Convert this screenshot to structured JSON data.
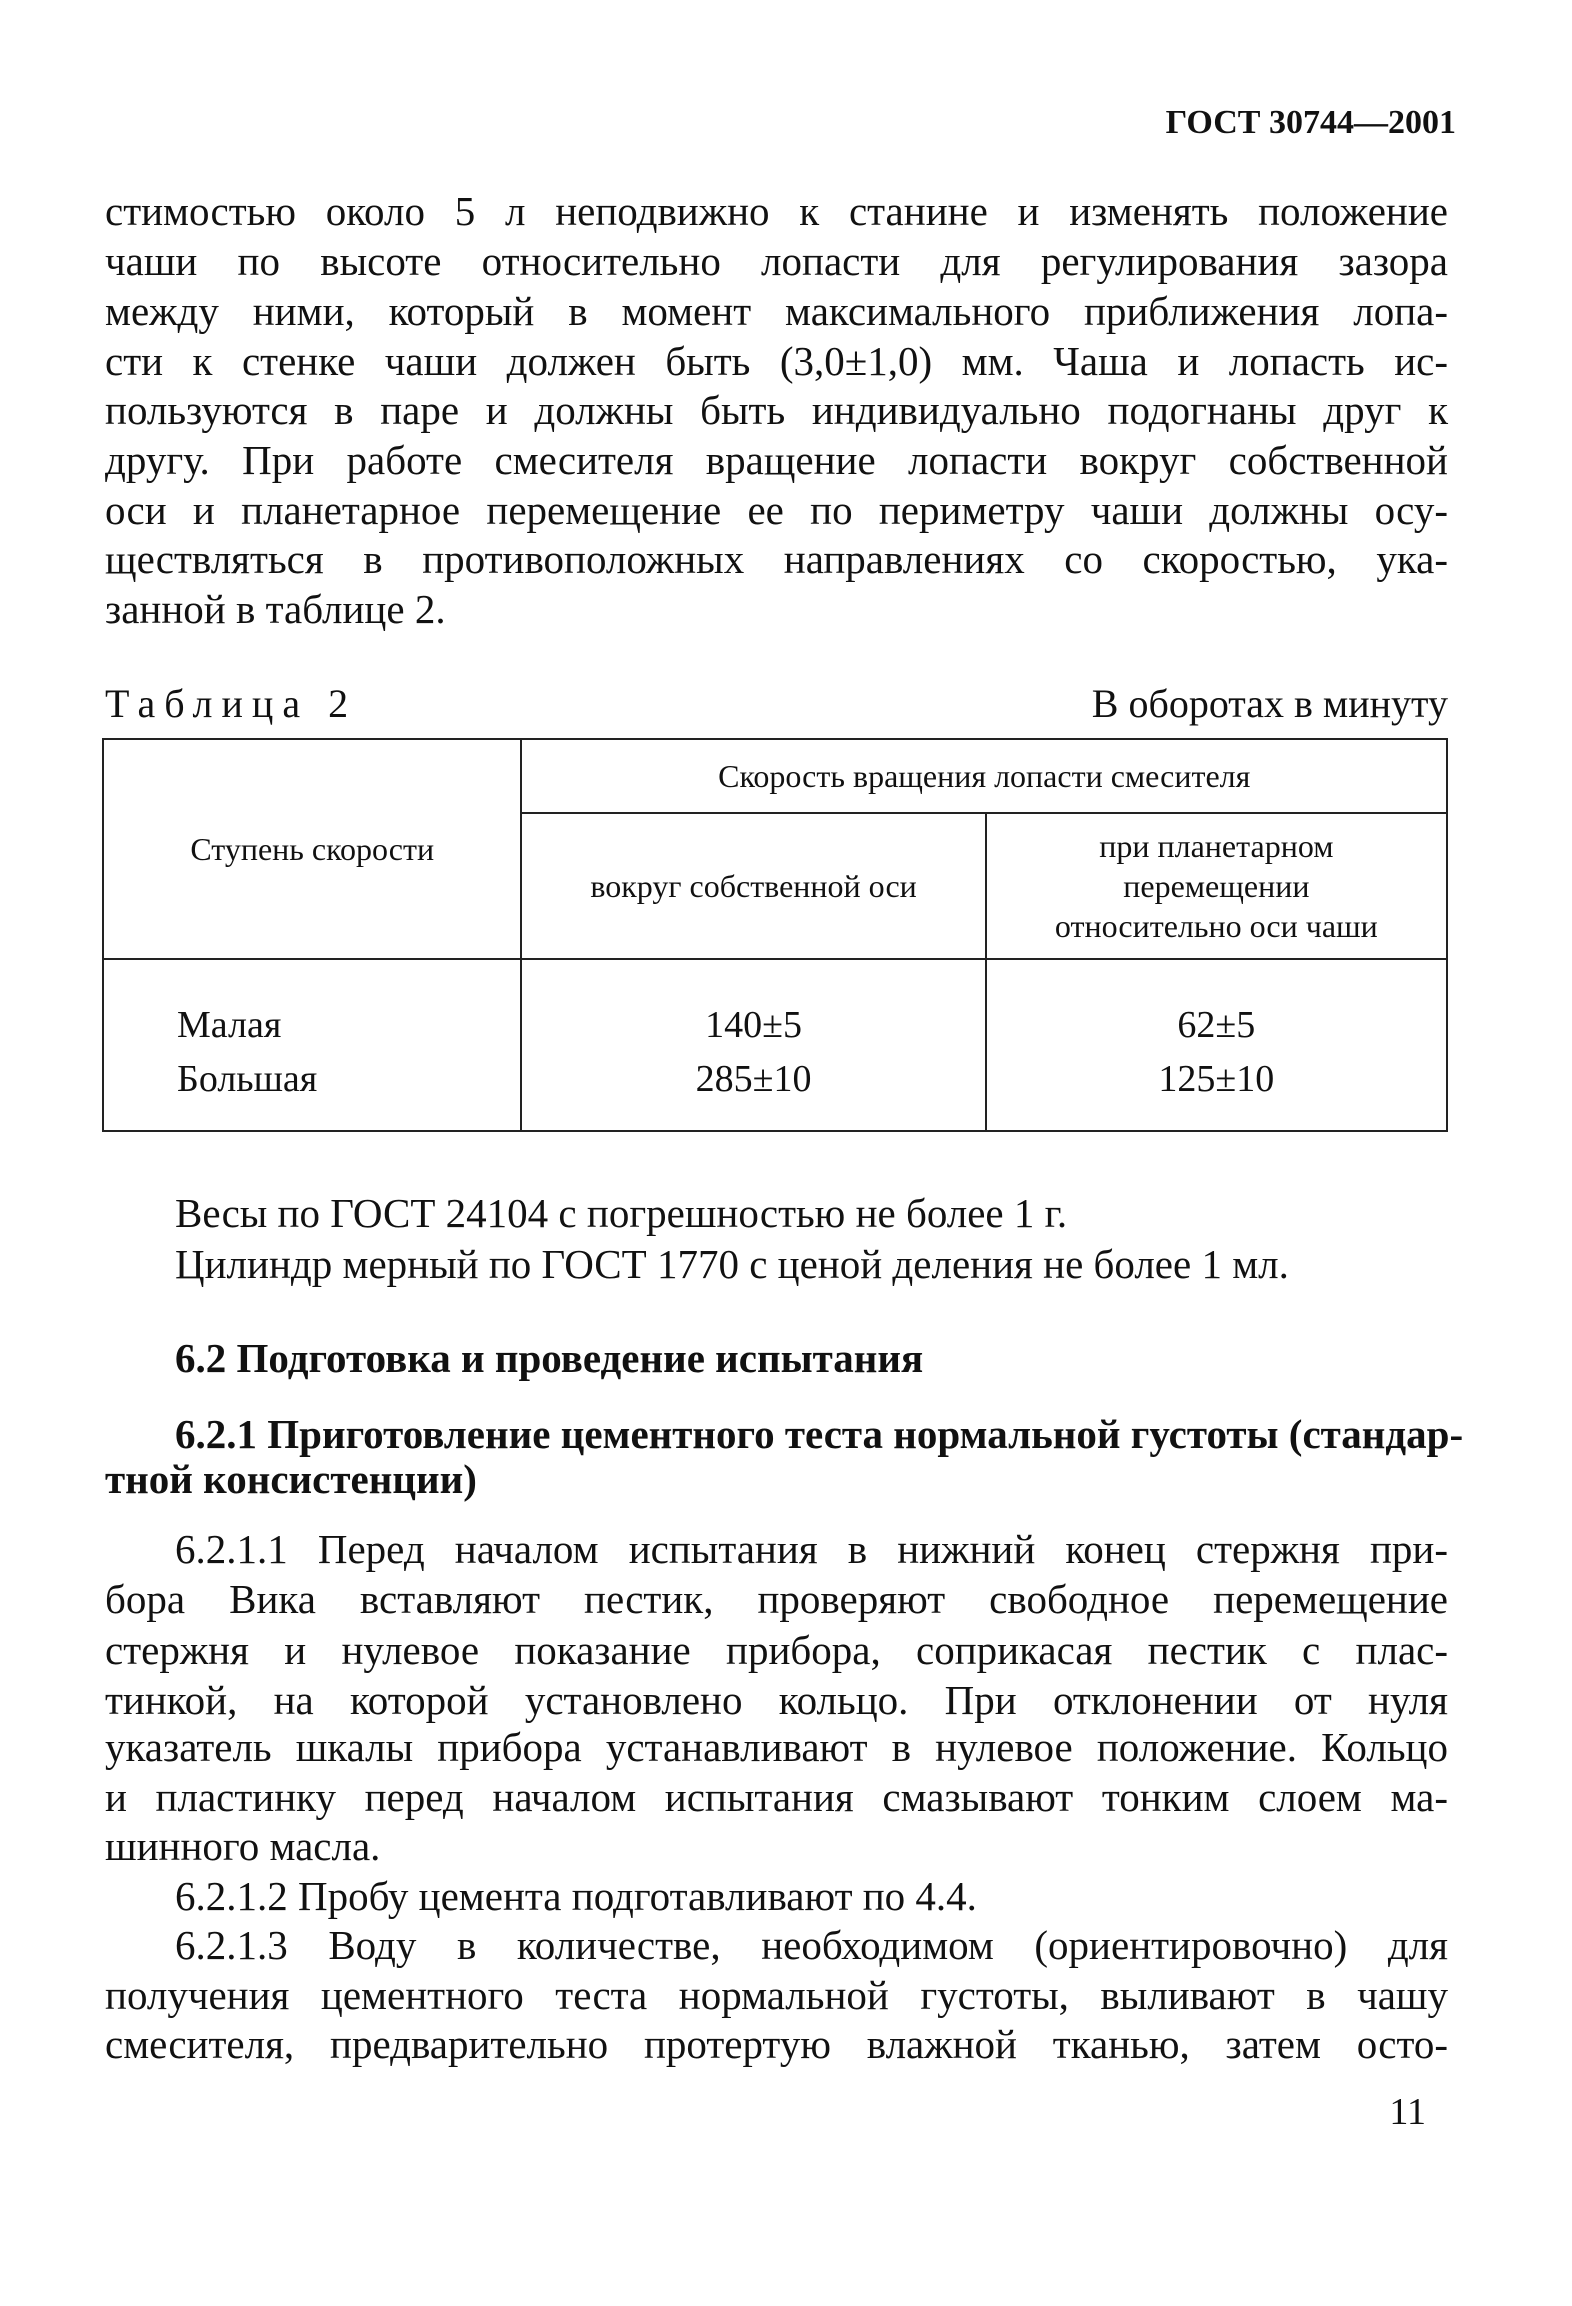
{
  "header": {
    "doc_code": "ГОСТ 30744—2001"
  },
  "para1": [
    "стимостью около 5 л неподвижно к станине и изменять положение",
    "чаши по высоте относительно лопасти для регулирования зазора",
    "между ними, который в момент максимального приближения лопа-",
    "сти к стенке чаши должен быть (3,0±1,0) мм. Чаша и лопасть ис-",
    "пользуются в паре и должны быть индивидуально подогнаны друг к",
    "другу. При работе смесителя вращение лопасти вокруг собственной",
    "оси и планетарное перемещение ее по периметру чаши должны осу-",
    "ществляться в противоположных направлениях со скоростью, ука-",
    "занной в таблице 2."
  ],
  "table": {
    "caption": "Таблица 2",
    "unit": "В оборотах в минуту",
    "col_stage": "Ступень скорости",
    "col_group": "Скорость вращения лопасти смесителя",
    "col_own_axis": "вокруг собственной оси",
    "col_planetary": [
      "при планетарном",
      "перемещении",
      "относительно оси чаши"
    ],
    "rows": [
      {
        "stage": "Малая",
        "own_axis": "140±5",
        "planetary": "62±5"
      },
      {
        "stage": "Большая",
        "own_axis": "285±10",
        "planetary": "125±10"
      }
    ]
  },
  "after_table": [
    "Весы по ГОСТ 24104 с погрешностью не более 1 г.",
    "Цилиндр мерный по ГОСТ 1770 с ценой деления не более 1 мл."
  ],
  "section_6_2": "6.2 Подготовка и проведение испытания",
  "section_6_2_1": [
    "6.2.1 Приготовление цементного теста нормальной густоты (стандар-",
    "тной консистенции)"
  ],
  "para_6_2_1_1": [
    "6.2.1.1 Перед началом испытания в нижний конец стержня при-",
    "бора Вика вставляют пестик, проверяют свободное перемещение",
    "стержня и нулевое показание прибора, соприкасая пестик с плас-",
    "тинкой, на которой установлено кольцо. При отклонении от нуля",
    "указатель шкалы прибора устанавливают в нулевое положение. Кольцо",
    "и пластинку перед началом испытания смазывают тонким слоем ма-",
    "шинного масла."
  ],
  "para_6_2_1_2": "6.2.1.2 Пробу цемента подготавливают по 4.4.",
  "para_6_2_1_3": [
    "6.2.1.3 Воду в количестве, необходимом (ориентировочно) для",
    "получения цементного теста нормальной густоты, выливают в чашу",
    "смесителя, предварительно протертую влажной тканью, затем осто-"
  ],
  "page_number": "11"
}
